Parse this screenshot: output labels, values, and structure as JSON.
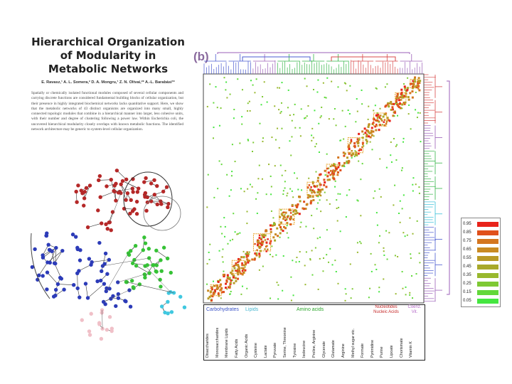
{
  "paper": {
    "title": "Hierarchical Organization of Modularity in Metabolic Networks",
    "authors": "E. Ravasz,¹ A. L. Somera,² D. A. Mongru,¹ Z. N. Oltvai,²* A.-L. Barabási¹*",
    "abstract": "Spatially or chemically isolated functional modules composed of several cellular components and carrying discrete functions are considered fundamental building blocks of cellular organization, but their presence in highly integrated biochemical networks lacks quantitative support. Here, we show that the metabolic networks of 43 distinct organisms are organized into many small, highly connected topologic modules that combine in a hierarchical manner into larger, less cohesive units, with their number and degree of clustering following a power law. Within Escherichia coli, the uncovered hierarchical modularity closely overlaps with known metabolic functions. The identified network architecture may be generic to system-level cellular organization."
  },
  "panel_label": "(b)",
  "legend": {
    "values": [
      "0.95",
      "0.85",
      "0.75",
      "0.65",
      "0.55",
      "0.45",
      "0.35",
      "0.25",
      "0.15",
      "0.05"
    ],
    "colors": [
      "#e8231b",
      "#e0501b",
      "#d4761f",
      "#c98a22",
      "#b99a26",
      "#a8a92a",
      "#98b82e",
      "#7ec934",
      "#62d83a",
      "#45e640"
    ]
  },
  "categories": {
    "carbohydrates": "Carbohydrates",
    "lipids": "Lipids",
    "amino_acids": "Amino acids",
    "nucleotides": "Nucleotides",
    "nucleic_acids": "Nucleic Acids",
    "coenz": "Coenz.",
    "vit": "Vit."
  },
  "subcategories": [
    "Disaccharides",
    "Monosaccharides",
    "Membrane Lipids",
    "Fatty Acids",
    "Organic Acids",
    "Cysteine",
    "Lactate",
    "Pyruvate",
    "Serine, Threonine",
    "Tyrosine",
    "Isoleucine",
    "Proline, Arginine",
    "Glycerate",
    "Glutamate",
    "Arginine",
    "Methyl sugar etc.",
    "Formate",
    "Pyrimidine",
    "Purine",
    "Lipoate",
    "Chorismate",
    "Vitamin K"
  ],
  "colors": {
    "dendro_blue": "#4a5bd0",
    "dendro_red": "#d84848",
    "dendro_green": "#35b548",
    "dendro_purple": "#9b5fb8",
    "dendro_cyan": "#39c0d8",
    "net_red": "#b52828",
    "net_blue": "#2c3bb8",
    "net_green": "#36c236",
    "net_cyan": "#40c8e0",
    "net_pink": "#f0c0c8",
    "carb_color": "#3b53c7",
    "lipid_color": "#49b7d0",
    "amino_color": "#2aa52a",
    "nucl_color": "#c62a2a",
    "coenz_color": "#b569c9"
  }
}
